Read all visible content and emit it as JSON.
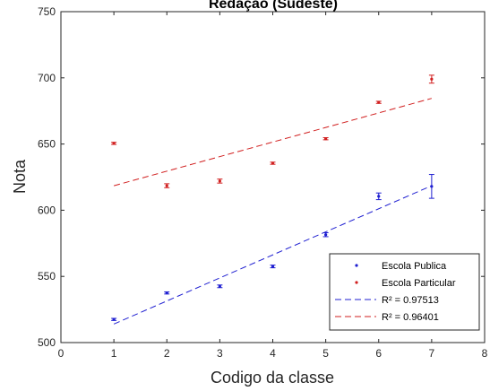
{
  "chart_data": {
    "type": "scatter",
    "title": "Redação (Sudeste)",
    "xlabel": "Codigo da classe",
    "ylabel": "Nota",
    "xlim": [
      0,
      8
    ],
    "ylim": [
      500,
      750
    ],
    "xticks": [
      0,
      1,
      2,
      3,
      4,
      5,
      6,
      7,
      8
    ],
    "yticks": [
      500,
      550,
      600,
      650,
      700,
      750
    ],
    "grid": false,
    "legend_position": "bottom-right",
    "series": [
      {
        "name": "Escola Publica",
        "color": "#1f1fd1",
        "x": [
          1,
          2,
          3,
          4,
          5,
          6,
          7
        ],
        "y": [
          517.5,
          537.5,
          542.5,
          557.5,
          581.5,
          610.5,
          618
        ],
        "err": [
          0.8,
          0.8,
          1,
          1,
          1.5,
          2.5,
          9
        ]
      },
      {
        "name": "Escola Particular",
        "color": "#d11f1f",
        "x": [
          1,
          2,
          3,
          4,
          5,
          6,
          7
        ],
        "y": [
          650.5,
          618.5,
          622,
          635.5,
          654,
          681.5,
          699
        ],
        "err": [
          0.8,
          1.5,
          1.5,
          0.8,
          0.8,
          0.8,
          3
        ]
      }
    ],
    "fits": [
      {
        "label": "R² = 0.97513",
        "color": "#1f1fd1",
        "x": [
          1,
          7
        ],
        "y": [
          514,
          618.5
        ]
      },
      {
        "label": "R² = 0.96401",
        "color": "#d11f1f",
        "x": [
          1,
          7
        ],
        "y": [
          618.5,
          684.5
        ]
      }
    ]
  }
}
